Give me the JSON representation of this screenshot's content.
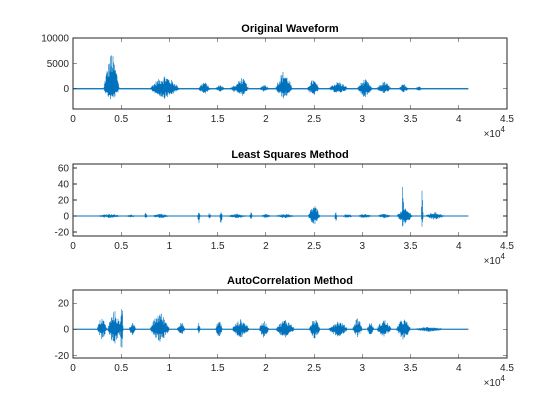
{
  "chart_data": [
    {
      "type": "line",
      "title": "Original Waveform",
      "xlabel": "",
      "ylabel": "",
      "xlim": [
        0,
        45000
      ],
      "ylim": [
        -4000,
        10000
      ],
      "xticks": [
        0,
        5000,
        10000,
        15000,
        20000,
        25000,
        30000,
        35000,
        40000,
        45000
      ],
      "xtick_labels": [
        "0",
        "0.5",
        "1",
        "1.5",
        "2",
        "2.5",
        "3",
        "3.5",
        "4",
        "4.5"
      ],
      "yticks": [
        0,
        5000,
        10000
      ],
      "ytick_labels": [
        "0",
        "5000",
        "10000"
      ],
      "x_exponent": "× 10^4",
      "x_exponent_base": "×10",
      "x_exponent_power": "4",
      "series": [
        {
          "color": "#0072BD",
          "x_range": [
            0,
            41000
          ],
          "baseline_noise": 120,
          "bursts": [
            {
              "x": [
                3200,
                4800
              ],
              "peak": 7500,
              "trough": -2500
            },
            {
              "x": [
                8000,
                11000
              ],
              "peak": 2800,
              "trough": -2000
            },
            {
              "x": [
                13000,
                14200
              ],
              "peak": 1500,
              "trough": -1200
            },
            {
              "x": [
                14800,
                15700
              ],
              "peak": 900,
              "trough": -600
            },
            {
              "x": [
                16300,
                17100
              ],
              "peak": 900,
              "trough": -700
            },
            {
              "x": [
                16800,
                18200
              ],
              "peak": 2400,
              "trough": -1500
            },
            {
              "x": [
                19400,
                20300
              ],
              "peak": 1000,
              "trough": -700
            },
            {
              "x": [
                21000,
                22700
              ],
              "peak": 3700,
              "trough": -2000
            },
            {
              "x": [
                24300,
                25500
              ],
              "peak": 2000,
              "trough": -1500
            },
            {
              "x": [
                26500,
                28500
              ],
              "peak": 1500,
              "trough": -1000
            },
            {
              "x": [
                29500,
                31000
              ],
              "peak": 2000,
              "trough": -1800
            },
            {
              "x": [
                31500,
                33000
              ],
              "peak": 1500,
              "trough": -1000
            },
            {
              "x": [
                33800,
                34800
              ],
              "peak": 1000,
              "trough": -800
            },
            {
              "x": [
                35500,
                36200
              ],
              "peak": 600,
              "trough": -500
            }
          ]
        }
      ]
    },
    {
      "type": "line",
      "title": "Least Squares Method",
      "xlabel": "",
      "ylabel": "",
      "xlim": [
        0,
        45000
      ],
      "ylim": [
        -25,
        65
      ],
      "xticks": [
        0,
        5000,
        10000,
        15000,
        20000,
        25000,
        30000,
        35000,
        40000,
        45000
      ],
      "xtick_labels": [
        "0",
        "0.5",
        "1",
        "1.5",
        "2",
        "2.5",
        "3",
        "3.5",
        "4",
        "4.5"
      ],
      "yticks": [
        -20,
        0,
        20,
        40,
        60
      ],
      "ytick_labels": [
        "-20",
        "0",
        "20",
        "40",
        "60"
      ],
      "x_exponent_base": "×10",
      "x_exponent_power": "4",
      "series": [
        {
          "color": "#0072BD",
          "x_range": [
            0,
            41000
          ],
          "baseline_noise": 0.6,
          "bursts": [
            {
              "x": [
                2500,
                5000
              ],
              "peak": 3,
              "trough": -3
            },
            {
              "x": [
                5500,
                6500
              ],
              "peak": 2,
              "trough": -2
            },
            {
              "x": [
                7400,
                7700
              ],
              "peak": 6,
              "trough": -4
            },
            {
              "x": [
                8200,
                10000
              ],
              "peak": 3,
              "trough": -3
            },
            {
              "x": [
                12900,
                13200
              ],
              "peak": 6,
              "trough": -10
            },
            {
              "x": [
                14000,
                14300
              ],
              "peak": 5,
              "trough": -4
            },
            {
              "x": [
                15200,
                15500
              ],
              "peak": 6,
              "trough": -12
            },
            {
              "x": [
                16000,
                18000
              ],
              "peak": 3,
              "trough": -3
            },
            {
              "x": [
                18300,
                18600
              ],
              "peak": 5,
              "trough": -5
            },
            {
              "x": [
                19500,
                20500
              ],
              "peak": 3,
              "trough": -3
            },
            {
              "x": [
                21000,
                23000
              ],
              "peak": 3,
              "trough": -3
            },
            {
              "x": [
                24400,
                25600
              ],
              "peak": 15,
              "trough": -12
            },
            {
              "x": [
                27100,
                27400
              ],
              "peak": 5,
              "trough": -8
            },
            {
              "x": [
                27900,
                29000
              ],
              "peak": 3,
              "trough": -3
            },
            {
              "x": [
                29500,
                31000
              ],
              "peak": 3,
              "trough": -3
            },
            {
              "x": [
                31500,
                33000
              ],
              "peak": 3,
              "trough": -3
            },
            {
              "x": [
                33600,
                35200
              ],
              "peak": 10,
              "trough": -10
            },
            {
              "x": [
                34100,
                34300
              ],
              "peak": 60,
              "trough": -20
            },
            {
              "x": [
                36100,
                36300
              ],
              "peak": 42,
              "trough": -20
            },
            {
              "x": [
                36500,
                38500
              ],
              "peak": 5,
              "trough": -5
            }
          ]
        }
      ]
    },
    {
      "type": "line",
      "title": "AutoCorrelation Method",
      "xlabel": "",
      "ylabel": "",
      "xlim": [
        0,
        45000
      ],
      "ylim": [
        -22,
        30
      ],
      "xticks": [
        0,
        5000,
        10000,
        15000,
        20000,
        25000,
        30000,
        35000,
        40000,
        45000
      ],
      "xtick_labels": [
        "0",
        "0.5",
        "1",
        "1.5",
        "2",
        "2.5",
        "3",
        "3.5",
        "4",
        "4.5"
      ],
      "yticks": [
        -20,
        0,
        20
      ],
      "ytick_labels": [
        "-20",
        "0",
        "20"
      ],
      "x_exponent_base": "×10",
      "x_exponent_power": "4",
      "series": [
        {
          "color": "#0072BD",
          "x_range": [
            0,
            41000
          ],
          "baseline_noise": 0.4,
          "bursts": [
            {
              "x": [
                2500,
                3500
              ],
              "peak": 10,
              "trough": -8
            },
            {
              "x": [
                3600,
                5000
              ],
              "peak": 15,
              "trough": -12
            },
            {
              "x": [
                4900,
                5200
              ],
              "peak": 30,
              "trough": -22
            },
            {
              "x": [
                5800,
                6500
              ],
              "peak": 6,
              "trough": -5
            },
            {
              "x": [
                8000,
                10000
              ],
              "peak": 14,
              "trough": -10
            },
            {
              "x": [
                10800,
                11600
              ],
              "peak": 7,
              "trough": -5
            },
            {
              "x": [
                12900,
                13200
              ],
              "peak": 6,
              "trough": -4
            },
            {
              "x": [
                14800,
                15500
              ],
              "peak": 8,
              "trough": -7
            },
            {
              "x": [
                16500,
                18300
              ],
              "peak": 8,
              "trough": -7
            },
            {
              "x": [
                19300,
                20300
              ],
              "peak": 7,
              "trough": -7
            },
            {
              "x": [
                21000,
                23000
              ],
              "peak": 8,
              "trough": -7
            },
            {
              "x": [
                24500,
                25600
              ],
              "peak": 9,
              "trough": -8
            },
            {
              "x": [
                26500,
                28500
              ],
              "peak": 7,
              "trough": -6
            },
            {
              "x": [
                29000,
                30000
              ],
              "peak": 10,
              "trough": -6
            },
            {
              "x": [
                30500,
                31200
              ],
              "peak": 6,
              "trough": -5
            },
            {
              "x": [
                31500,
                33000
              ],
              "peak": 8,
              "trough": -6
            },
            {
              "x": [
                33500,
                35000
              ],
              "peak": 9,
              "trough": -8
            },
            {
              "x": [
                35300,
                38500
              ],
              "peak": 2,
              "trough": -2
            }
          ]
        }
      ]
    }
  ]
}
